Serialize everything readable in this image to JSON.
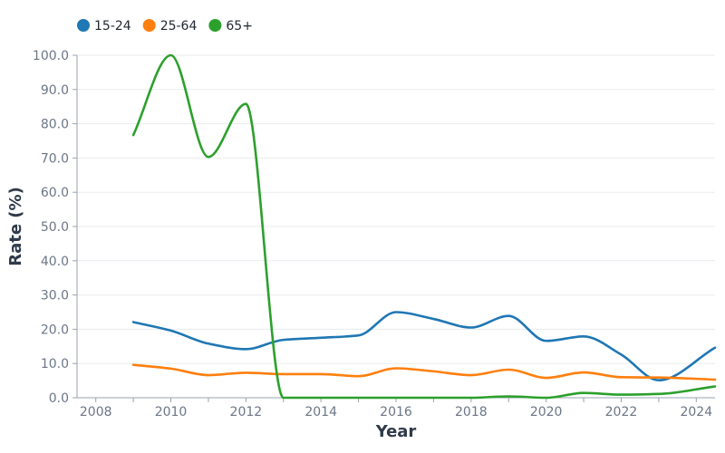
{
  "chart_data": {
    "type": "line",
    "title": "",
    "xlabel": "Year",
    "ylabel": "Rate (%)",
    "xlim": [
      2007.5,
      2024.5
    ],
    "ylim": [
      0,
      100
    ],
    "x_ticks": [
      2008,
      2010,
      2012,
      2014,
      2016,
      2018,
      2020,
      2022,
      2024
    ],
    "y_ticks": [
      "0.0",
      "10.0",
      "20.0",
      "30.0",
      "40.0",
      "50.0",
      "60.0",
      "70.0",
      "80.0",
      "90.0",
      "100.0"
    ],
    "grid": true,
    "legend_position": "top-left",
    "x": [
      2009,
      2010,
      2011,
      2012,
      2013,
      2014,
      2015,
      2016,
      2017,
      2018,
      2019,
      2020,
      2021,
      2022,
      2023,
      2024.5
    ],
    "series": [
      {
        "name": "15-24",
        "color": "#1f77b4",
        "values": [
          22.1,
          19.6,
          15.8,
          14.2,
          16.9,
          17.5,
          18.2,
          25.0,
          23.0,
          20.5,
          23.9,
          16.6,
          17.9,
          12.6,
          5.1,
          14.6
        ]
      },
      {
        "name": "25-64",
        "color": "#ff7f0e",
        "values": [
          9.6,
          8.5,
          6.6,
          7.3,
          6.9,
          6.9,
          6.3,
          8.6,
          7.7,
          6.6,
          8.2,
          5.8,
          7.4,
          6.0,
          5.9,
          5.3
        ]
      },
      {
        "name": "65+",
        "color": "#2ca02c",
        "values": [
          76.7,
          100.0,
          70.3,
          85.8,
          0.0,
          0.0,
          0.0,
          0.0,
          0.0,
          0.0,
          0.4,
          0.0,
          1.4,
          0.9,
          1.1,
          3.3
        ]
      }
    ]
  }
}
